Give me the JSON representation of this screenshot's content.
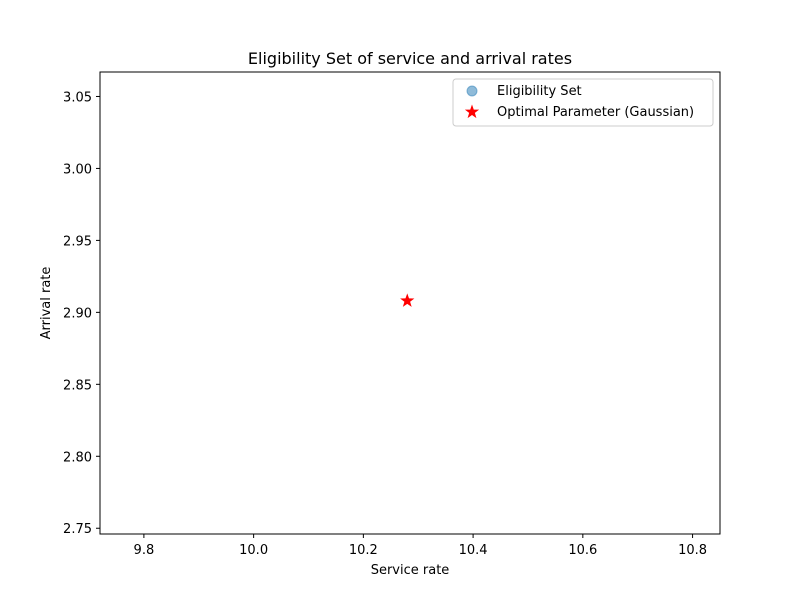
{
  "chart_data": {
    "type": "scatter",
    "title": "Eligibility Set of service and arrival rates",
    "xlabel": "Service rate",
    "ylabel": "Arrival rate",
    "xlim": [
      9.72,
      10.85
    ],
    "ylim": [
      2.746,
      3.067
    ],
    "xticks": [
      "9.8",
      "10.0",
      "10.2",
      "10.4",
      "10.6",
      "10.8"
    ],
    "yticks": [
      "2.75",
      "2.80",
      "2.85",
      "2.90",
      "2.95",
      "3.00",
      "3.05"
    ],
    "grid": false,
    "legend_position": "top-right",
    "series": [
      {
        "name": "Eligibility Set",
        "marker": "circle",
        "color": "#1f77b4",
        "points": []
      },
      {
        "name": "Optimal Parameter (Gaussian)",
        "marker": "star",
        "color": "#ff0000",
        "points": [
          {
            "x": 10.28,
            "y": 2.908
          }
        ]
      }
    ]
  }
}
